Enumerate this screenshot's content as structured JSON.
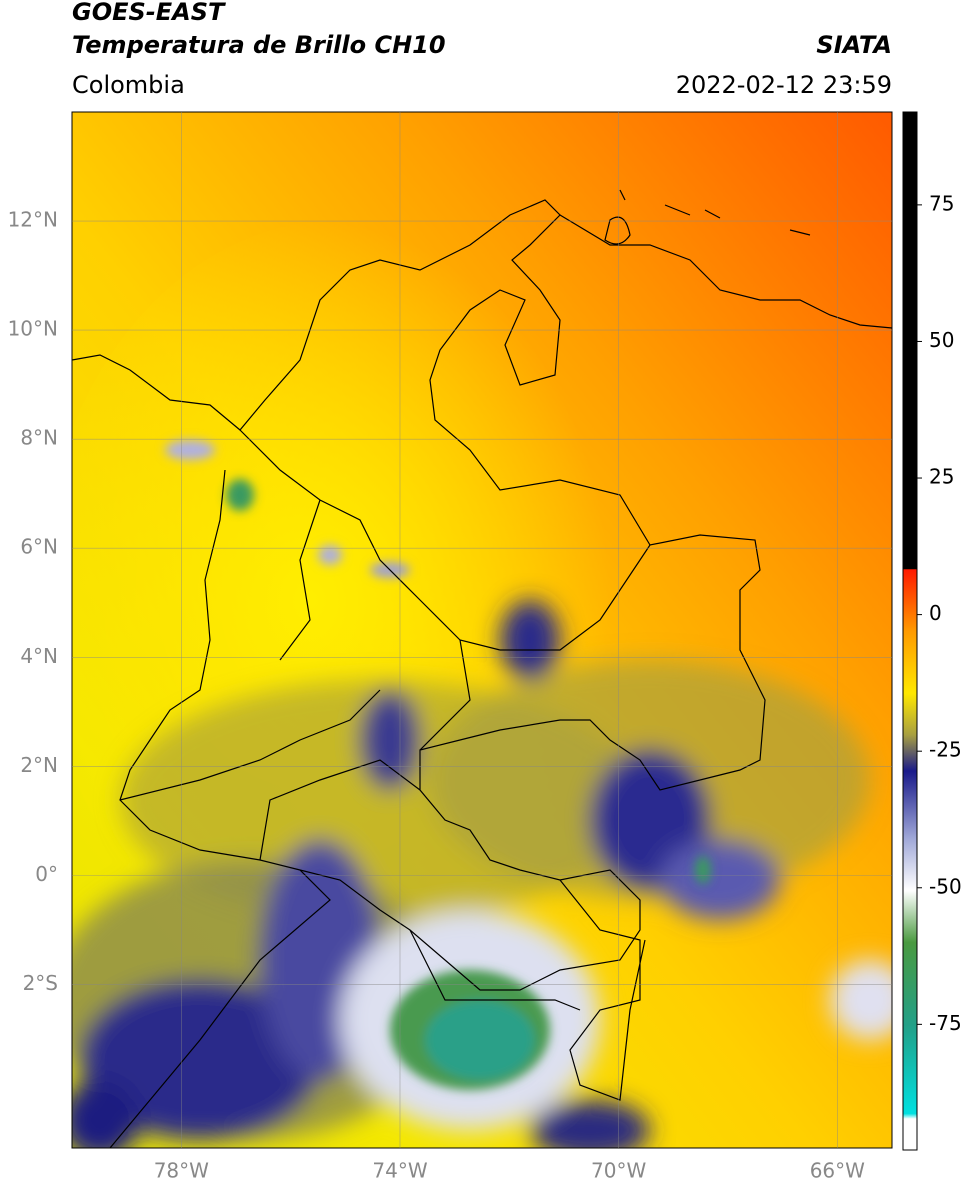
{
  "map": {
    "title": "GOES-EAST",
    "subtitle": "Temperatura de Brillo CH10",
    "source": "SIATA",
    "region": "Colombia",
    "datetime": "2022-02-12 23:59",
    "xlim": [
      -80,
      -65
    ],
    "ylim": [
      -5,
      14
    ],
    "xticks": [
      {
        "value": -78,
        "label": "78°W"
      },
      {
        "value": -74,
        "label": "74°W"
      },
      {
        "value": -70,
        "label": "70°W"
      },
      {
        "value": -66,
        "label": "66°W"
      }
    ],
    "yticks": [
      {
        "value": 12,
        "label": "12°N"
      },
      {
        "value": 10,
        "label": "10°N"
      },
      {
        "value": 8,
        "label": "8°N"
      },
      {
        "value": 6,
        "label": "6°N"
      },
      {
        "value": 4,
        "label": "4°N"
      },
      {
        "value": 2,
        "label": "2°N"
      },
      {
        "value": 0,
        "label": "0°"
      },
      {
        "value": -2,
        "label": "2°S"
      }
    ],
    "grid": true,
    "colorbar": {
      "lim": [
        -98,
        92
      ],
      "ticks": [
        75,
        50,
        25,
        0,
        -25,
        -50,
        -75
      ]
    }
  }
}
